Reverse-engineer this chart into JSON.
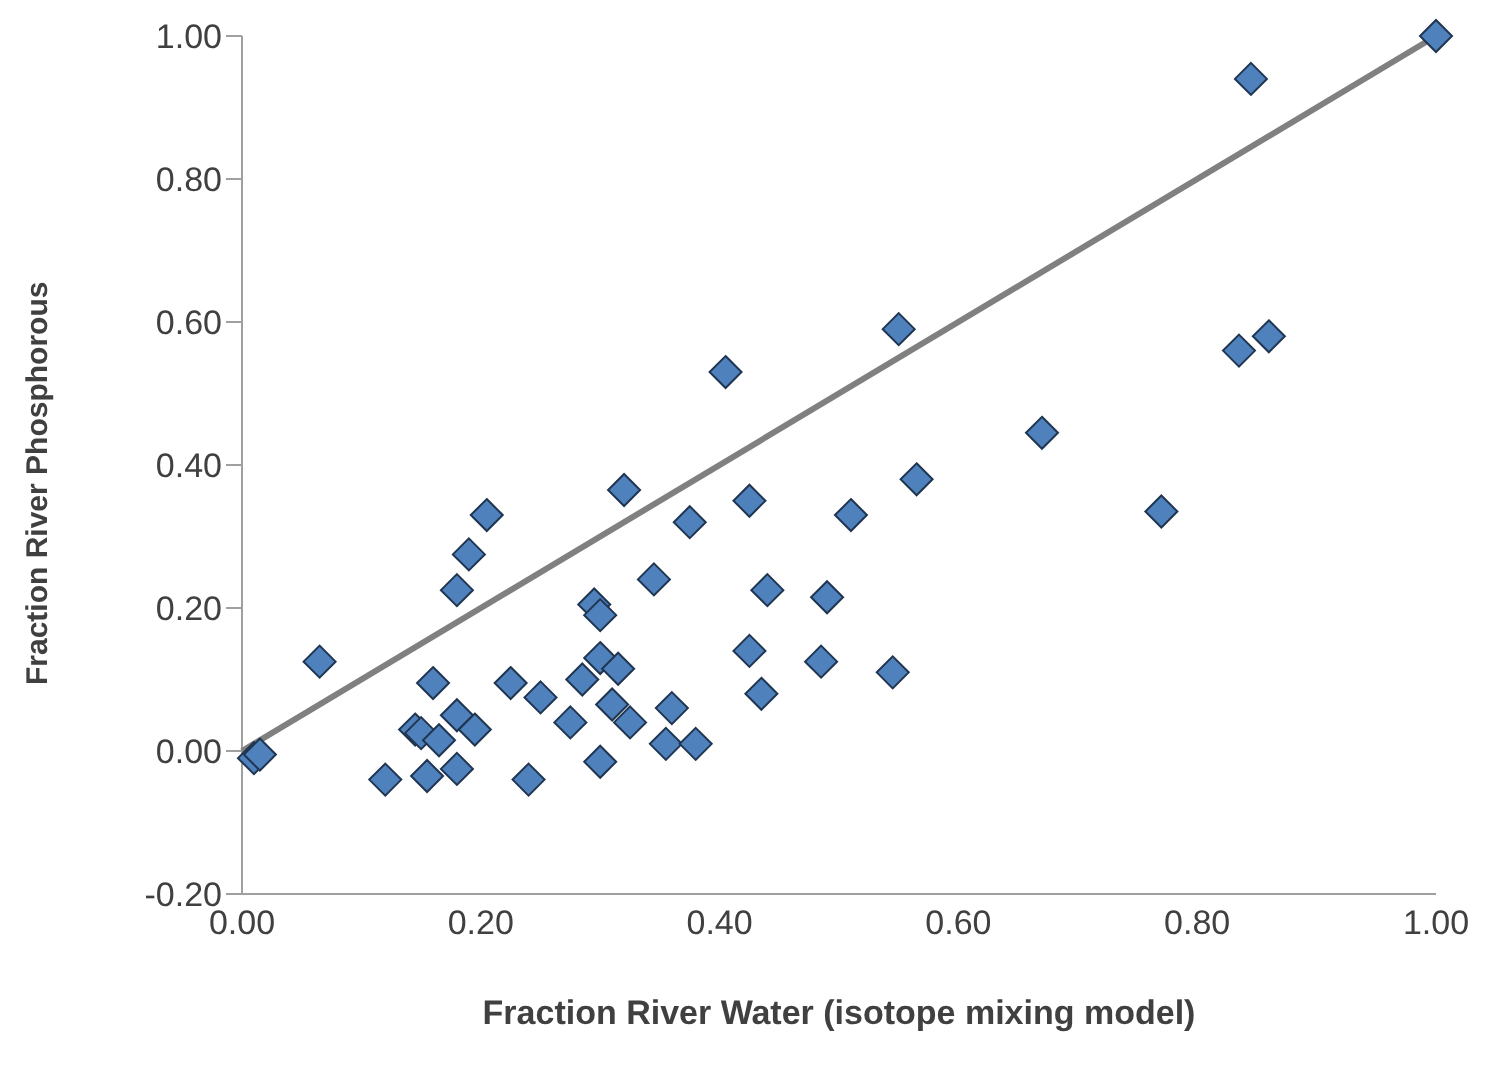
{
  "chart_data": {
    "type": "scatter",
    "xlabel": "Fraction River Water (isotope mixing model)",
    "ylabel": "Fraction River Phosphorous",
    "xlim": [
      0,
      1
    ],
    "xticks": [
      {
        "value": 0,
        "label": "0.00"
      },
      {
        "value": 0.2,
        "label": "0.20"
      },
      {
        "value": 0.4,
        "label": "0.40"
      },
      {
        "value": 0.6,
        "label": "0.60"
      },
      {
        "value": 0.8,
        "label": "0.80"
      },
      {
        "value": 1,
        "label": "1.00"
      }
    ],
    "ylim": [
      -0.2,
      1
    ],
    "yticks": [
      {
        "value": -0.2,
        "label": "-0.20"
      },
      {
        "value": 0,
        "label": "0.00"
      },
      {
        "value": 0.2,
        "label": "0.20"
      },
      {
        "value": 0.4,
        "label": "0.40"
      },
      {
        "value": 0.6,
        "label": "0.60"
      },
      {
        "value": 0.8,
        "label": "0.80"
      },
      {
        "value": 1,
        "label": "1.00"
      }
    ],
    "grid": false,
    "series": [
      {
        "marker": "diamond",
        "color": "#4f81bd",
        "x": [
          0.01,
          0.015,
          0.065,
          0.12,
          0.145,
          0.15,
          0.155,
          0.16,
          0.165,
          0.18,
          0.18,
          0.18,
          0.19,
          0.205,
          0.195,
          0.225,
          0.24,
          0.25,
          0.275,
          0.285,
          0.3,
          0.295,
          0.3,
          0.3,
          0.31,
          0.315,
          0.325,
          0.32,
          0.345,
          0.355,
          0.36,
          0.375,
          0.38,
          0.405,
          0.425,
          0.425,
          0.44,
          0.435,
          0.49,
          0.485,
          0.51,
          0.545,
          0.55,
          0.565,
          0.67,
          0.77,
          0.835,
          0.86,
          0.845,
          1.0
        ],
        "values": [
          -0.01,
          -0.005,
          0.125,
          -0.04,
          0.03,
          0.025,
          -0.035,
          0.095,
          0.015,
          0.05,
          -0.025,
          0.225,
          0.275,
          0.33,
          0.03,
          0.095,
          -0.04,
          0.075,
          0.04,
          0.1,
          0.13,
          0.205,
          0.19,
          -0.015,
          0.065,
          0.115,
          0.04,
          0.365,
          0.24,
          0.01,
          0.06,
          0.32,
          0.01,
          0.53,
          0.35,
          0.14,
          0.225,
          0.08,
          0.215,
          0.125,
          0.33,
          0.11,
          0.59,
          0.38,
          0.445,
          0.335,
          0.56,
          0.58,
          0.94,
          1.0
        ]
      },
      {
        "type": "line",
        "marker": "none",
        "color": "#808080",
        "x": [
          0,
          1
        ],
        "values": [
          0,
          1
        ]
      }
    ]
  }
}
